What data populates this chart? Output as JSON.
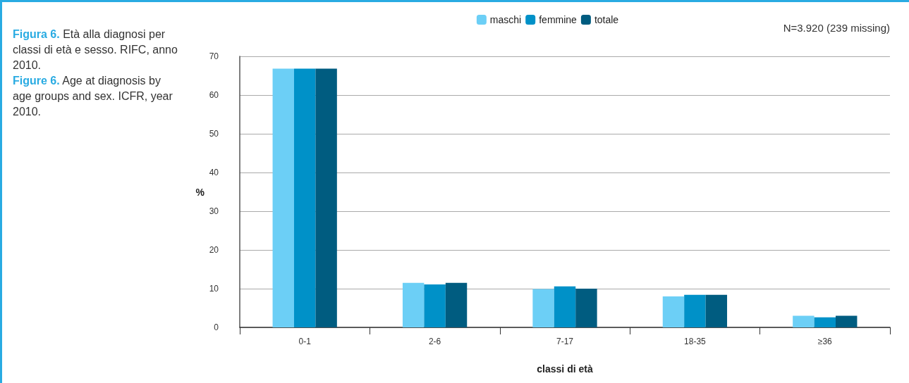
{
  "chart_data": {
    "type": "bar",
    "title": "Figura 6. Età alla diagnosi per classi di età e sesso. RIFC, anno 2010.",
    "subtitle": "Figure 6. Age at diagnosis by age groups and sex. ICFR, year 2010.",
    "xlabel": "classi di età",
    "ylabel": "%",
    "annotations": [
      "N=3.920 (239 missing)"
    ],
    "categories": [
      "0-1",
      "2-6",
      "7-17",
      "18-35",
      "≥36"
    ],
    "series": [
      {
        "name": "maschi",
        "color": "#6ccff6",
        "values": [
          66.8,
          11.5,
          9.9,
          8.0,
          3.0
        ]
      },
      {
        "name": "femmine",
        "color": "#0091c8",
        "values": [
          66.8,
          11.1,
          10.6,
          8.4,
          2.6
        ]
      },
      {
        "name": "totale",
        "color": "#005c80",
        "values": [
          66.8,
          11.5,
          10.0,
          8.4,
          3.0
        ]
      }
    ],
    "ylim": [
      0,
      70
    ],
    "yticks": [
      0,
      10,
      20,
      30,
      40,
      50,
      60,
      70
    ],
    "grid": "y",
    "legend": "top"
  }
}
